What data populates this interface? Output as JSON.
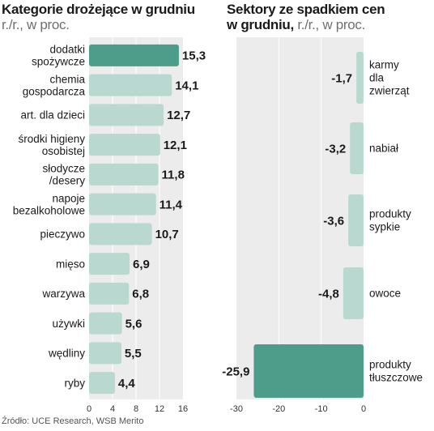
{
  "left_header": {
    "title": "Kategorie drożejące w grudniu",
    "unit": "r./r., w proc."
  },
  "right_header": {
    "title_line1": "Sektory ze spadkiem cen",
    "title_line2": "w grudniu,",
    "unit": "r./r., w proc."
  },
  "source": "Źródło: UCE Research, WSB Merito",
  "colors": {
    "highlight": "#4e9c8a",
    "normal": "#b9d8cf",
    "panel": "#ececec",
    "gridline": "#ffffff"
  },
  "chart_data": [
    {
      "type": "bar",
      "orientation": "horizontal",
      "title": "Kategorie drożejące w grudniu",
      "subtitle": "r./r., w proc.",
      "categories": [
        "dodatki spożywcze",
        "chemia gospodarcza",
        "art. dla dzieci",
        "środki higieny osobistej",
        "słodycze /desery",
        "napoje bezalkoholowe",
        "pieczywo",
        "mięso",
        "warzywa",
        "używki",
        "wędliny",
        "ryby"
      ],
      "category_lines": [
        [
          "dodatki",
          "spożywcze"
        ],
        [
          "chemia",
          "gospodarcza"
        ],
        [
          "art. dla dzieci"
        ],
        [
          "środki higieny",
          "osobistej"
        ],
        [
          "słodycze",
          "/desery"
        ],
        [
          "napoje",
          "bezalkoholowe"
        ],
        [
          "pieczywo"
        ],
        [
          "mięso"
        ],
        [
          "warzywa"
        ],
        [
          "używki"
        ],
        [
          "wędliny"
        ],
        [
          "ryby"
        ]
      ],
      "values": [
        15.3,
        14.1,
        12.7,
        12.1,
        11.8,
        11.4,
        10.7,
        6.9,
        6.8,
        5.6,
        5.5,
        4.4
      ],
      "value_labels": [
        "15,3",
        "14,1",
        "12,7",
        "12,1",
        "11,8",
        "11,4",
        "10,7",
        "6,9",
        "6,8",
        "5,6",
        "5,5",
        "4,4"
      ],
      "highlight_index": 0,
      "xlim": [
        0,
        16
      ],
      "xticks": [
        0,
        4,
        8,
        12,
        16
      ],
      "grid": true
    },
    {
      "type": "bar",
      "orientation": "vertical-diverging",
      "title": "Sektory ze spadkiem cen w grudniu",
      "subtitle": "r./r., w proc.",
      "categories": [
        "karmy dla zwierząt",
        "nabiał",
        "produkty sypkie",
        "owoce",
        "produkty tłuszczowe"
      ],
      "category_lines": [
        [
          "karmy",
          "dla",
          "zwierząt"
        ],
        [
          "nabiał"
        ],
        [
          "produkty",
          "sypkie"
        ],
        [
          "owoce"
        ],
        [
          "produkty",
          "tłuszczowe"
        ]
      ],
      "values": [
        -1.7,
        -3.2,
        -3.6,
        -4.8,
        -25.9
      ],
      "value_labels": [
        "-1,7",
        "-3,2",
        "-3,6",
        "-4,8",
        "-25,9"
      ],
      "highlight_index": 4,
      "xlim": [
        -30,
        0
      ],
      "xticks": [
        -30,
        -20,
        -10,
        0
      ],
      "grid": true
    }
  ]
}
